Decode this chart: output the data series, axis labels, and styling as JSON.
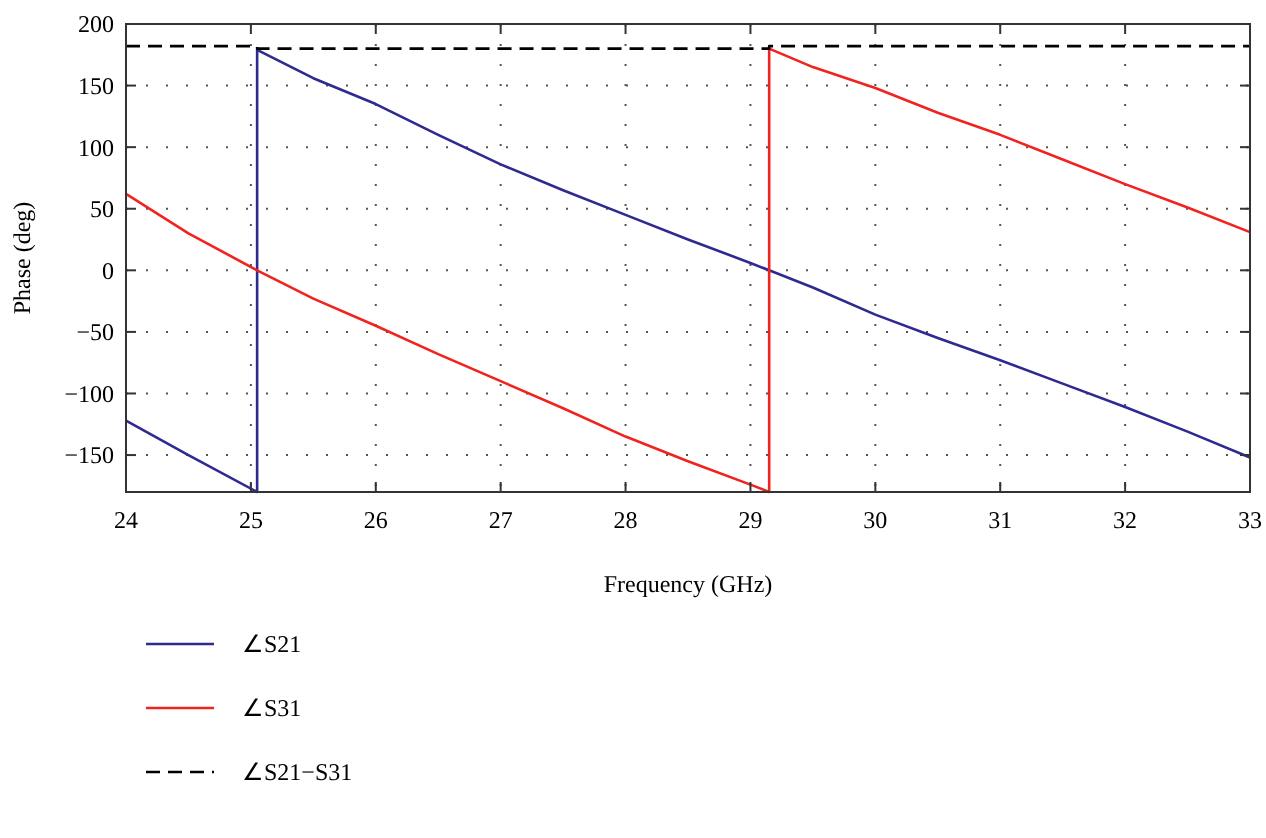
{
  "chart_data": {
    "type": "line",
    "xlabel": "Frequency (GHz)",
    "ylabel": "Phase (deg)",
    "xlim": [
      24,
      33
    ],
    "xticks": [
      24,
      25,
      26,
      27,
      28,
      29,
      30,
      31,
      32,
      33
    ],
    "ylim": [
      -180,
      200
    ],
    "yticks": [
      -150,
      -100,
      -50,
      0,
      50,
      100,
      150,
      200
    ],
    "grid": true,
    "legend": "bottom",
    "series": [
      {
        "name": "∠S21",
        "color": "#2e2a8f",
        "line_style": "solid",
        "x": [
          24,
          24.5,
          25.05,
          25.05,
          25.5,
          26,
          26.5,
          27,
          27.5,
          28,
          28.5,
          29,
          29.15,
          29.5,
          30,
          30.5,
          31,
          31.5,
          32,
          32.5,
          33
        ],
        "values": [
          -122,
          -150,
          -180,
          179,
          156,
          135,
          110,
          86,
          65,
          45,
          25,
          6,
          0,
          -14,
          -36,
          -55,
          -73,
          -92,
          -111,
          -131,
          -152
        ]
      },
      {
        "name": "∠S31",
        "color": "#f0231e",
        "line_style": "solid",
        "x": [
          24,
          24.5,
          25.05,
          25.5,
          26,
          26.5,
          27,
          27.5,
          28,
          28.5,
          29,
          29.15,
          29.15,
          29.5,
          30,
          30.5,
          31,
          31.5,
          32,
          32.5,
          33
        ],
        "values": [
          62,
          30,
          0,
          -23,
          -45,
          -68,
          -90,
          -112,
          -135,
          -155,
          -174,
          -180,
          180,
          165,
          148,
          128,
          110,
          90,
          70,
          51,
          31
        ]
      },
      {
        "name": "∠S21−S31",
        "color": "#000000",
        "line_style": "dashed",
        "x": [
          24,
          25.05,
          25.05,
          29.15,
          29.15,
          33
        ],
        "values": [
          182,
          182,
          180,
          180,
          182,
          182
        ]
      }
    ]
  }
}
